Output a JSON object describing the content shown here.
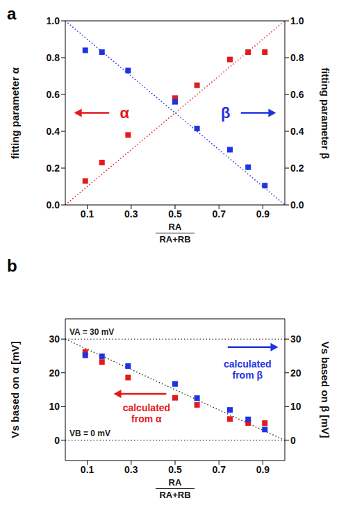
{
  "chart_data": [
    {
      "type": "scatter",
      "panel_label": "a",
      "x_label": [
        "RA",
        "RA+RB"
      ],
      "y_label": "fitting parameter α",
      "y2_label": "fitting parameter β",
      "xlim": [
        0,
        1
      ],
      "xticks": [
        0.1,
        0.3,
        0.5,
        0.7,
        0.9
      ],
      "ylim": [
        0,
        1
      ],
      "yticks": [
        {
          "value": 0,
          "label": "0.0"
        },
        0.2,
        0.4,
        0.6,
        0.8,
        {
          "value": 1,
          "label": "1.0"
        }
      ],
      "y2lim": [
        0,
        1
      ],
      "y2ticks": [
        {
          "value": 0,
          "label": "0.0"
        },
        0.2,
        0.4,
        0.6,
        0.8,
        {
          "value": 1,
          "label": "1.0"
        }
      ],
      "x": [
        0.091,
        0.167,
        0.286,
        0.5,
        0.6,
        0.75,
        0.833,
        0.909
      ],
      "series": [
        {
          "name": "α",
          "color": "#e31a1c",
          "marker": "square",
          "values": [
            0.13,
            0.23,
            0.38,
            0.58,
            0.65,
            0.79,
            0.83,
            0.83
          ]
        },
        {
          "name": "β",
          "color": "#1f33e0",
          "marker": "square",
          "axis": "y2",
          "values": [
            0.84,
            0.83,
            0.73,
            0.56,
            0.415,
            0.3,
            0.205,
            0.105
          ]
        }
      ],
      "reference_lines": [
        {
          "x": [
            0,
            1
          ],
          "values": [
            0,
            1
          ],
          "color": "#e31a1c",
          "line_style": "dotted"
        },
        {
          "x": [
            0,
            1
          ],
          "values": [
            1,
            0
          ],
          "color": "#1f33e0",
          "line_style": "dotted"
        }
      ]
    },
    {
      "type": "scatter",
      "panel_label": "b",
      "x_label": [
        "RA",
        "RA+RB"
      ],
      "y_label": "Vs based on α [mV]",
      "y2_label": "Vs based on β [mV]",
      "xlim": [
        0,
        1
      ],
      "xticks": [
        0.1,
        0.3,
        0.5,
        0.7,
        0.9
      ],
      "ylim": [
        -6,
        36
      ],
      "yticks": [
        0,
        10,
        20,
        30
      ],
      "y2lim": [
        -6,
        36
      ],
      "y2ticks": [
        0,
        10,
        20,
        30
      ],
      "x": [
        0.091,
        0.167,
        0.286,
        0.5,
        0.6,
        0.75,
        0.833,
        0.909
      ],
      "series": [
        {
          "name": "calculated from α",
          "color": "#e31a1c",
          "marker": "square",
          "values": [
            26.2,
            23.2,
            18.6,
            12.6,
            10.5,
            6.3,
            5.1,
            5.1
          ]
        },
        {
          "name": "calculated from β",
          "color": "#1f33e0",
          "marker": "square",
          "axis": "y2",
          "values": [
            25.2,
            24.9,
            22.0,
            16.7,
            12.5,
            9.0,
            6.2,
            3.2
          ]
        }
      ],
      "reference_lines": [
        {
          "x": [
            0,
            1
          ],
          "values": [
            30,
            0
          ],
          "color": "#333333",
          "line_style": "dotted"
        },
        {
          "y": 30,
          "label": "VA = 30 mV",
          "color": "#555555",
          "line_style": "dotted"
        },
        {
          "y": 0,
          "label": "VB = 0 mV",
          "color": "#555555",
          "line_style": "dotted"
        }
      ]
    }
  ]
}
